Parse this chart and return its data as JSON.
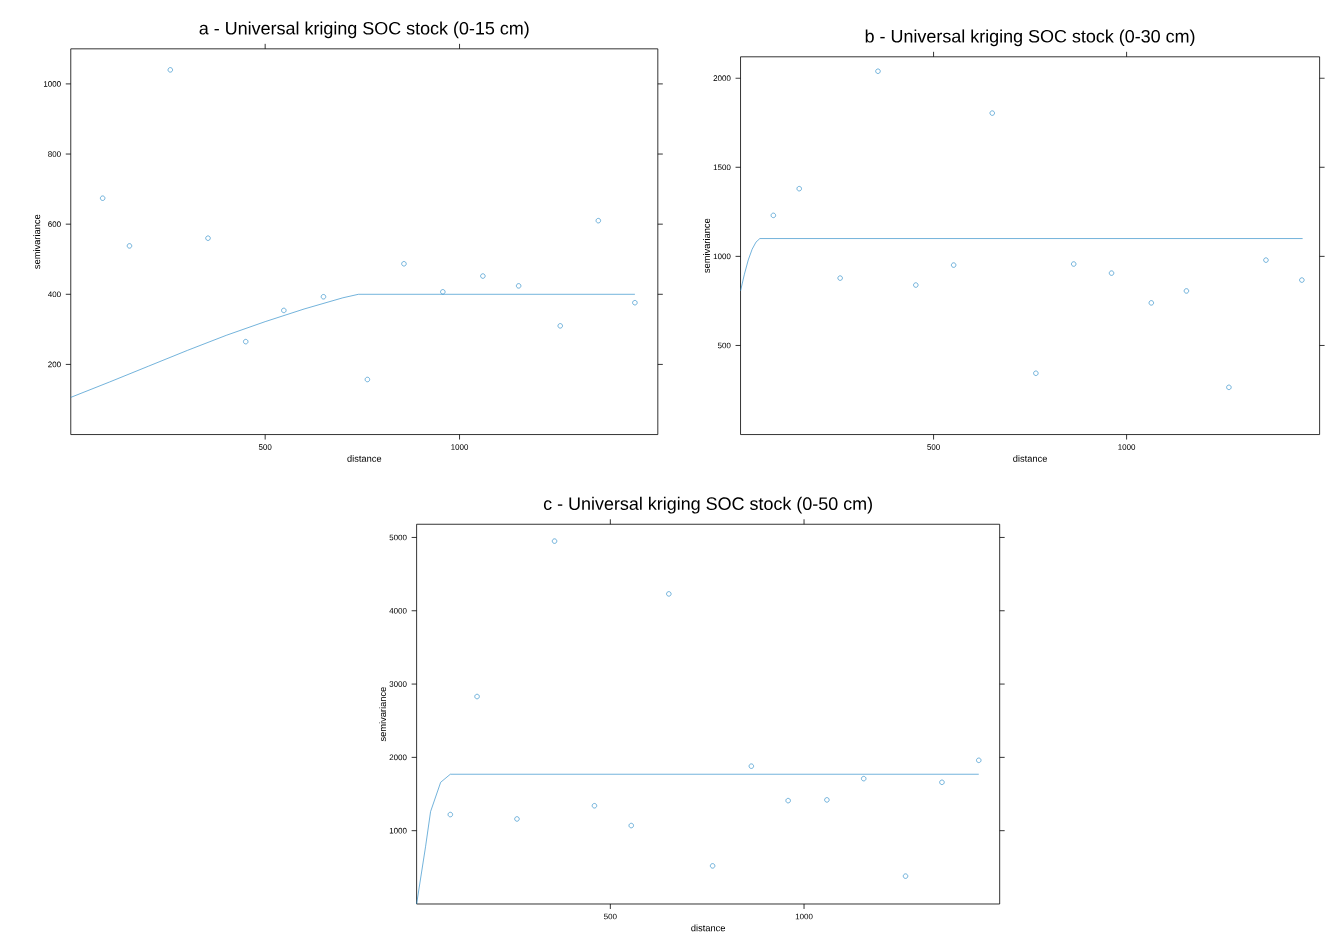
{
  "chart_data": [
    {
      "type": "scatter",
      "title": "a - Universal kriging SOC stock (0-15 cm)",
      "xlabel": "distance",
      "ylabel": "semivariance",
      "xlim": [
        0,
        1510
      ],
      "ylim": [
        0,
        1100
      ],
      "xticks": [
        500,
        1000
      ],
      "yticks": [
        200,
        400,
        600,
        800,
        1000
      ],
      "marker": "circle",
      "series": [
        {
          "color": "#2c8cc8",
          "x": [
            82,
            151,
            256,
            353,
            450,
            548,
            650,
            763,
            857,
            957,
            1060,
            1152,
            1259,
            1357,
            1451
          ],
          "values": [
            674,
            538,
            1040,
            560,
            265,
            354,
            393,
            157,
            487,
            407,
            452,
            424,
            310,
            610,
            376
          ]
        },
        {
          "type": "line",
          "color": "#2c8cc8",
          "marker": "none",
          "line_style": "solid",
          "x": [
            0,
            100,
            200,
            300,
            400,
            500,
            600,
            700,
            740,
            1451
          ],
          "values": [
            106,
            150,
            195,
            240,
            283,
            322,
            358,
            390,
            400,
            400
          ]
        }
      ]
    },
    {
      "type": "scatter",
      "title": "b - Universal kriging SOC stock (0-30 cm)",
      "xlabel": "distance",
      "ylabel": "semivariance",
      "xlim": [
        0,
        1500
      ],
      "ylim": [
        0,
        2120
      ],
      "xticks": [
        500,
        1000
      ],
      "yticks": [
        500,
        1000,
        1500,
        2000
      ],
      "marker": "circle",
      "series": [
        {
          "color": "#2c8cc8",
          "x": [
            85,
            152,
            258,
            356,
            454,
            552,
            652,
            765,
            863,
            961,
            1064,
            1155,
            1265,
            1361,
            1454
          ],
          "values": [
            1230,
            1380,
            878,
            2039,
            839,
            951,
            1804,
            344,
            957,
            906,
            739,
            806,
            265,
            979,
            867
          ]
        },
        {
          "type": "line",
          "color": "#2c8cc8",
          "marker": "none",
          "line_style": "solid",
          "x": [
            0,
            10,
            20,
            30,
            40,
            50,
            1456
          ],
          "values": [
            806,
            900,
            980,
            1040,
            1080,
            1100,
            1100
          ]
        }
      ]
    },
    {
      "type": "scatter",
      "title": "c - Universal kriging SOC stock (0-50 cm)",
      "xlabel": "distance",
      "ylabel": "semivariance",
      "xlim": [
        0,
        1505
      ],
      "ylim": [
        0,
        5180
      ],
      "xticks": [
        500,
        1000
      ],
      "yticks": [
        1000,
        2000,
        3000,
        4000,
        5000
      ],
      "marker": "circle",
      "series": [
        {
          "color": "#2c8cc8",
          "x": [
            87,
            156,
            259,
            356,
            459,
            554,
            651,
            764,
            864,
            959,
            1059,
            1154,
            1262,
            1356,
            1451
          ],
          "values": [
            1220,
            2830,
            1160,
            4950,
            1340,
            1070,
            4230,
            520,
            1880,
            1410,
            1420,
            1710,
            380,
            1660,
            1960
          ]
        },
        {
          "type": "line",
          "color": "#2c8cc8",
          "marker": "none",
          "line_style": "solid",
          "x": [
            0,
            23,
            36,
            62,
            87,
            1451
          ],
          "values": [
            0,
            780,
            1260,
            1660,
            1770,
            1770
          ]
        }
      ]
    }
  ]
}
